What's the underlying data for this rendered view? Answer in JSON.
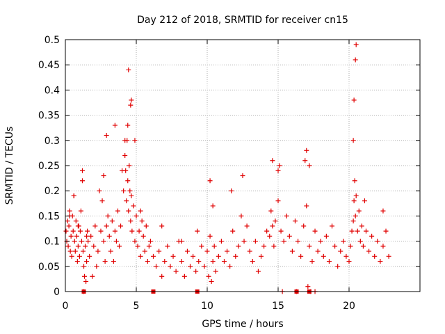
{
  "chart_data": {
    "type": "scatter",
    "title": "Day 212 of 2018, SRMTID for receiver cn15",
    "xlabel": "GPS time / hours",
    "ylabel": "SRMTID / TECUs",
    "xlim": [
      0,
      25
    ],
    "ylim": [
      0,
      0.5
    ],
    "x_ticks": [
      0,
      5,
      10,
      15,
      20
    ],
    "x_tick_labels": [
      "0",
      "5",
      "10",
      "15",
      "20"
    ],
    "y_ticks": [
      0,
      0.05,
      0.1,
      0.15,
      0.2,
      0.25,
      0.3,
      0.35,
      0.4,
      0.45,
      0.5
    ],
    "y_tick_labels": [
      "0",
      "0.05",
      "0.1",
      "0.15",
      "0.2",
      "0.25",
      "0.3",
      "0.35",
      "0.4",
      "0.45",
      "0.5"
    ],
    "grid": true,
    "marker": "+",
    "series": [
      {
        "name": "SRMTID",
        "color": "#e00000",
        "x": [
          0.05,
          0.1,
          0.15,
          0.2,
          0.25,
          0.3,
          0.35,
          0.4,
          0.45,
          0.5,
          0.55,
          0.6,
          0.65,
          0.7,
          0.75,
          0.8,
          0.85,
          0.9,
          0.95,
          1.0,
          1.05,
          1.1,
          1.15,
          1.2,
          1.25,
          1.3,
          1.35,
          1.4,
          1.45,
          1.5,
          1.55,
          1.6,
          1.7,
          1.8,
          1.9,
          2.0,
          2.1,
          2.2,
          2.3,
          2.4,
          2.5,
          2.6,
          2.7,
          2.8,
          2.9,
          3.0,
          3.1,
          3.2,
          3.3,
          3.4,
          3.5,
          3.6,
          3.7,
          3.8,
          3.9,
          4.0,
          4.1,
          4.2,
          4.3,
          4.35,
          4.4,
          4.45,
          4.5,
          4.55,
          4.6,
          4.65,
          4.7,
          4.8,
          4.9,
          5.0,
          5.1,
          5.2,
          5.3,
          5.4,
          5.5,
          5.6,
          5.7,
          5.8,
          5.9,
          6.0,
          6.2,
          6.4,
          6.6,
          6.8,
          7.0,
          7.2,
          7.4,
          7.6,
          7.8,
          8.0,
          8.2,
          8.4,
          8.6,
          8.8,
          9.0,
          9.2,
          9.4,
          9.6,
          9.8,
          10.0,
          10.1,
          10.2,
          10.3,
          10.4,
          10.5,
          10.6,
          10.8,
          11.0,
          11.2,
          11.4,
          11.6,
          11.8,
          12.0,
          12.2,
          12.4,
          12.6,
          12.8,
          13.0,
          13.2,
          13.4,
          13.6,
          13.8,
          14.0,
          14.2,
          14.4,
          14.5,
          14.6,
          14.7,
          14.8,
          15.0,
          15.2,
          15.4,
          15.6,
          15.8,
          16.0,
          16.2,
          16.4,
          16.6,
          16.8,
          17.0,
          17.2,
          17.4,
          17.6,
          17.8,
          18.0,
          18.2,
          18.4,
          18.6,
          18.8,
          19.0,
          19.2,
          19.4,
          19.6,
          19.8,
          20.0,
          20.1,
          20.2,
          20.3,
          20.35,
          20.4,
          20.45,
          20.5,
          20.6,
          20.7,
          20.8,
          20.9,
          21.0,
          21.2,
          21.4,
          21.6,
          21.8,
          22.0,
          22.2,
          22.4,
          22.6,
          22.8,
          0.3,
          0.6,
          0.9,
          1.2,
          1.5,
          2.7,
          2.9,
          3.5,
          4.2,
          4.25,
          4.4,
          4.45,
          4.6,
          4.65,
          4.9,
          5.3,
          6.8,
          8.2,
          9.3,
          10.2,
          10.4,
          11.7,
          12.5,
          14.6,
          15.0,
          15.1,
          16.9,
          17.0,
          17.2,
          20.3,
          20.35,
          20.45,
          20.5,
          21.1,
          22.4,
          15.3,
          17.3,
          17.6,
          1.3,
          16.3,
          17.1
        ],
        "y": [
          0.12,
          0.1,
          0.14,
          0.09,
          0.13,
          0.16,
          0.08,
          0.11,
          0.07,
          0.15,
          0.12,
          0.19,
          0.1,
          0.08,
          0.14,
          0.11,
          0.06,
          0.09,
          0.13,
          0.07,
          0.12,
          0.16,
          0.1,
          0.24,
          0.08,
          0.05,
          0.03,
          0.09,
          0.02,
          0.06,
          0.12,
          0.1,
          0.07,
          0.11,
          0.03,
          0.09,
          0.13,
          0.05,
          0.08,
          0.2,
          0.12,
          0.18,
          0.1,
          0.06,
          0.13,
          0.15,
          0.11,
          0.08,
          0.14,
          0.06,
          0.12,
          0.1,
          0.16,
          0.09,
          0.13,
          0.24,
          0.2,
          0.27,
          0.18,
          0.3,
          0.22,
          0.16,
          0.25,
          0.2,
          0.14,
          0.19,
          0.12,
          0.17,
          0.1,
          0.15,
          0.09,
          0.12,
          0.07,
          0.14,
          0.11,
          0.08,
          0.13,
          0.06,
          0.09,
          0.1,
          0.07,
          0.05,
          0.08,
          0.03,
          0.06,
          0.09,
          0.05,
          0.07,
          0.04,
          0.1,
          0.06,
          0.03,
          0.08,
          0.05,
          0.07,
          0.04,
          0.06,
          0.09,
          0.05,
          0.08,
          0.03,
          0.11,
          0.02,
          0.06,
          0.09,
          0.04,
          0.07,
          0.1,
          0.06,
          0.08,
          0.05,
          0.12,
          0.07,
          0.09,
          0.15,
          0.1,
          0.13,
          0.08,
          0.06,
          0.1,
          0.04,
          0.07,
          0.09,
          0.12,
          0.11,
          0.16,
          0.13,
          0.09,
          0.14,
          0.18,
          0.12,
          0.1,
          0.15,
          0.11,
          0.08,
          0.14,
          0.1,
          0.07,
          0.13,
          0.17,
          0.09,
          0.06,
          0.12,
          0.08,
          0.1,
          0.07,
          0.11,
          0.06,
          0.13,
          0.09,
          0.05,
          0.08,
          0.1,
          0.07,
          0.06,
          0.09,
          0.12,
          0.14,
          0.18,
          0.22,
          0.15,
          0.19,
          0.12,
          0.16,
          0.1,
          0.13,
          0.09,
          0.12,
          0.08,
          0.11,
          0.07,
          0.1,
          0.06,
          0.09,
          0.12,
          0.07,
          0.15,
          0.19,
          0.13,
          0.22,
          0.11,
          0.23,
          0.31,
          0.33,
          0.3,
          0.24,
          0.33,
          0.44,
          0.37,
          0.38,
          0.3,
          0.16,
          0.13,
          0.1,
          0.12,
          0.22,
          0.17,
          0.2,
          0.23,
          0.26,
          0.24,
          0.25,
          0.26,
          0.28,
          0.25,
          0.3,
          0.38,
          0.46,
          0.49,
          0.18,
          0.16,
          0.0,
          0.0,
          0.0,
          0.0,
          0.0,
          0.01
        ],
        "zero_marks_x": [
          1.3,
          6.2,
          9.3,
          16.3,
          17.2
        ]
      }
    ]
  }
}
